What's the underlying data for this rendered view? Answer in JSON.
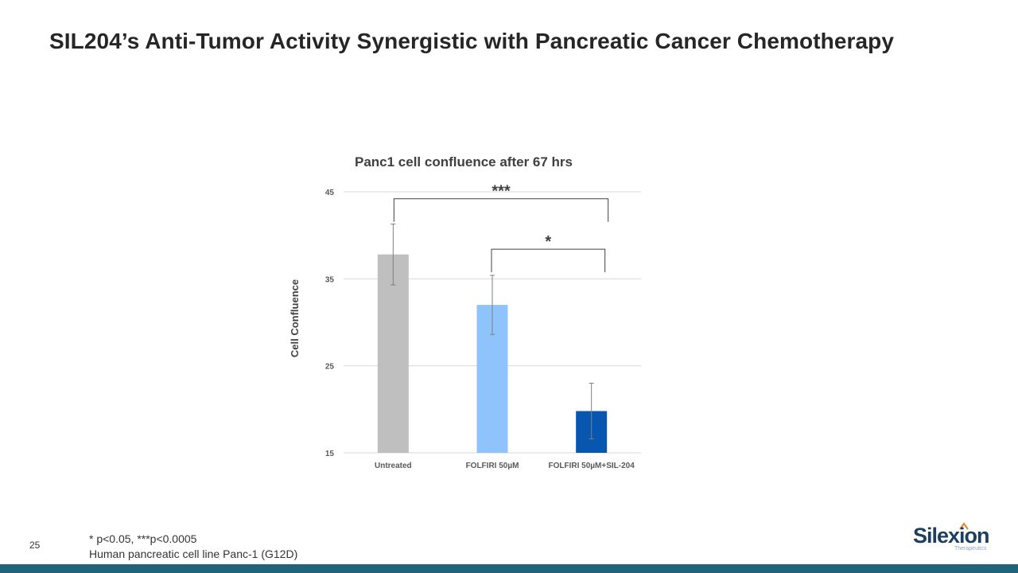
{
  "slide": {
    "title": "SIL204’s Anti-Tumor Activity Synergistic with Pancreatic Cancer Chemotherapy",
    "page_number": "25",
    "footnote_line1": "* p<0.05,  ***p<0.0005",
    "footnote_line2": "Human pancreatic cell line Panc-1 (G12D)"
  },
  "logo": {
    "word": "Silexion",
    "sub": "Therapeutics"
  },
  "colors": {
    "bar_untreated": "#bfbfbf",
    "bar_folfiri": "#8fc3fc",
    "bar_combo": "#0756b0",
    "bottom_bar": "#1f6479",
    "grid": "#d9d9d9"
  },
  "chart_data": {
    "type": "bar",
    "title": "Panc1 cell confluence after 67 hrs",
    "xlabel": "",
    "ylabel": "Cell Confluence",
    "ylim": [
      15,
      45
    ],
    "yticks": [
      15,
      25,
      35,
      45
    ],
    "grid": true,
    "categories": [
      "Untreated",
      "FOLFIRI 50µM",
      "FOLFIRI 50µM+SIL-204"
    ],
    "values": [
      37.8,
      32,
      19.8
    ],
    "errors": [
      3.5,
      3.4,
      3.2
    ],
    "significance": [
      {
        "from": 0,
        "to": 2,
        "label": "***",
        "y": 44.2
      },
      {
        "from": 1,
        "to": 2,
        "label": "*",
        "y": 38.4
      }
    ]
  }
}
